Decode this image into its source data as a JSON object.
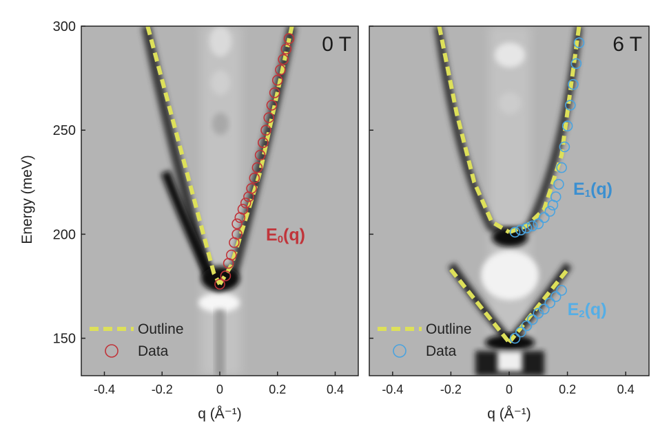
{
  "y_axis_label": "Energy (meV)",
  "colors": {
    "outline": "#dde05a",
    "data_0T": "#c0343a",
    "data_6T": "#4aa3df",
    "label_E0": "#c0343a",
    "label_E1": "#3b8fd0",
    "label_E2": "#55aee6",
    "background_gray": "#b4b4b4"
  },
  "chart_data": [
    {
      "type": "scatter",
      "panel_label": "0 T",
      "xlabel": "q (Å⁻¹)",
      "ylabel": "Energy (meV)",
      "xlim": [
        -0.48,
        0.48
      ],
      "ylim": [
        132,
        300
      ],
      "x_ticks": [
        -0.4,
        -0.2,
        0,
        0.2,
        0.4
      ],
      "x_tick_labels": [
        "-0.4",
        "-0.2",
        "0",
        "0.2",
        "0.4"
      ],
      "y_ticks": [
        150,
        200,
        250,
        300
      ],
      "y_tick_labels": [
        "150",
        "200",
        "250",
        "300"
      ],
      "legend": {
        "position": "bottom-left",
        "entries": [
          "Outline",
          "Data"
        ]
      },
      "annotations": [
        {
          "text": "E",
          "subscript": "0",
          "suffix": "(q)",
          "x": 0.16,
          "y": 200
        }
      ],
      "series": [
        {
          "name": "Outline",
          "style": "dashed-line",
          "segments": [
            {
              "x": [
                -0.25,
                -0.02,
                0.0
              ],
              "y": [
                300,
                181,
                176
              ]
            },
            {
              "x": [
                0.0,
                0.04,
                0.14,
                0.25
              ],
              "y": [
                176,
                185,
                230,
                300
              ]
            }
          ]
        },
        {
          "name": "Data",
          "style": "open-circles",
          "x": [
            0.0,
            0.02,
            0.03,
            0.04,
            0.05,
            0.06,
            0.06,
            0.07,
            0.08,
            0.09,
            0.1,
            0.11,
            0.12,
            0.13,
            0.14,
            0.15,
            0.16,
            0.17,
            0.18,
            0.19,
            0.2,
            0.21,
            0.22,
            0.23,
            0.24
          ],
          "y": [
            176,
            180,
            186,
            190,
            196,
            200,
            205,
            208,
            212,
            215,
            218,
            222,
            227,
            232,
            238,
            244,
            250,
            256,
            262,
            268,
            274,
            279,
            284,
            289,
            294
          ]
        }
      ]
    },
    {
      "type": "scatter",
      "panel_label": "6 T",
      "xlabel": "q (Å⁻¹)",
      "ylabel": "",
      "xlim": [
        -0.48,
        0.48
      ],
      "ylim": [
        132,
        300
      ],
      "x_ticks": [
        -0.4,
        -0.2,
        0,
        0.2,
        0.4
      ],
      "x_tick_labels": [
        "-0.4",
        "-0.2",
        "0",
        "0.2",
        "0.4"
      ],
      "y_ticks": [
        150,
        200,
        250,
        300
      ],
      "y_tick_labels": [],
      "legend": {
        "position": "bottom-left",
        "entries": [
          "Outline",
          "Data"
        ]
      },
      "annotations": [
        {
          "text": "E",
          "subscript": "1",
          "suffix": "(q)",
          "x": 0.22,
          "y": 222
        },
        {
          "text": "E",
          "subscript": "2",
          "suffix": "(q)",
          "x": 0.2,
          "y": 164
        }
      ],
      "series": [
        {
          "name": "Outline",
          "style": "dashed-line",
          "segments": [
            {
              "x": [
                -0.24,
                -0.18,
                -0.12,
                -0.06,
                0.0
              ],
              "y": [
                300,
                258,
                225,
                206,
                201
              ]
            },
            {
              "x": [
                0.0,
                0.06,
                0.12,
                0.18,
                0.24
              ],
              "y": [
                201,
                204,
                212,
                238,
                300
              ]
            },
            {
              "x": [
                -0.2,
                0.0
              ],
              "y": [
                183,
                148
              ]
            },
            {
              "x": [
                0.0,
                0.2
              ],
              "y": [
                148,
                183
              ]
            }
          ]
        },
        {
          "name": "Data",
          "style": "open-circles",
          "x": [
            0.02,
            0.04,
            0.06,
            0.08,
            0.1,
            0.12,
            0.14,
            0.15,
            0.16,
            0.17,
            0.18,
            0.19,
            0.2,
            0.21,
            0.22,
            0.23,
            0.24,
            0.02,
            0.04,
            0.06,
            0.08,
            0.1,
            0.12,
            0.14,
            0.16,
            0.18
          ],
          "y": [
            201,
            202,
            203,
            204,
            205,
            208,
            211,
            214,
            218,
            224,
            232,
            242,
            252,
            262,
            272,
            282,
            292,
            150,
            153,
            156,
            159,
            162,
            164,
            167,
            170,
            173
          ]
        }
      ]
    }
  ]
}
